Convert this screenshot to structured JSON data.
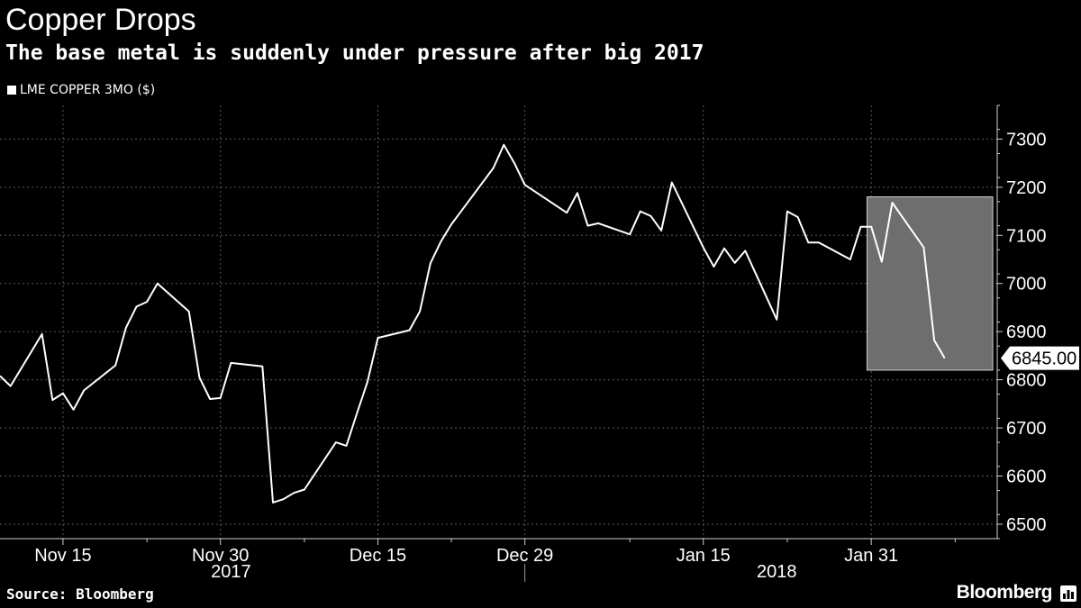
{
  "title": "Copper Drops",
  "subtitle": "The base metal is suddenly under pressure after big 2017",
  "legend": {
    "label": "LME COPPER 3MO ($)",
    "color": "#ffffff"
  },
  "source": "Source: Bloomberg",
  "brand": "Bloomberg",
  "brand_icon": "bloomberg-terminal-icon",
  "last_value_label": "6845.00",
  "highlight": {
    "start_date": "2018-02-02",
    "end_date": "2018-02-09",
    "low": 6820,
    "high": 7180,
    "color": "#6e6e6e"
  },
  "chart_data": {
    "type": "line",
    "x_unit": "date",
    "xlim": [
      "2017-11-09",
      "2018-02-12"
    ],
    "ylim": [
      6470,
      7370
    ],
    "yticks": [
      6500,
      6600,
      6700,
      6800,
      6900,
      7000,
      7100,
      7200,
      7300
    ],
    "xticks": [
      {
        "date": "2017-11-15",
        "label": "Nov 15"
      },
      {
        "date": "2017-11-30",
        "label": "Nov 30"
      },
      {
        "date": "2017-12-15",
        "label": "Dec 15"
      },
      {
        "date": "2017-12-29",
        "label": "Dec 29"
      },
      {
        "date": "2018-01-15",
        "label": "Jan 15"
      },
      {
        "date": "2018-01-31",
        "label": "Jan 31"
      }
    ],
    "years": [
      {
        "date": "2017-12-01",
        "label": "2017"
      },
      {
        "date": "2018-01-22",
        "label": "2018"
      }
    ],
    "year_divider": "2017-12-29",
    "grid": true,
    "legend_position": "top-left",
    "series": [
      {
        "name": "LME COPPER 3MO ($)",
        "color": "#ffffff",
        "points": [
          [
            "2017-11-09",
            6808
          ],
          [
            "2017-11-10",
            6787
          ],
          [
            "2017-11-13",
            6895
          ],
          [
            "2017-11-14",
            6758
          ],
          [
            "2017-11-15",
            6772
          ],
          [
            "2017-11-16",
            6738
          ],
          [
            "2017-11-17",
            6778
          ],
          [
            "2017-11-20",
            6830
          ],
          [
            "2017-11-21",
            6908
          ],
          [
            "2017-11-22",
            6952
          ],
          [
            "2017-11-23",
            6962
          ],
          [
            "2017-11-24",
            7000
          ],
          [
            "2017-11-27",
            6942
          ],
          [
            "2017-11-28",
            6805
          ],
          [
            "2017-11-29",
            6760
          ],
          [
            "2017-11-30",
            6762
          ],
          [
            "2017-12-01",
            6835
          ],
          [
            "2017-12-04",
            6828
          ],
          [
            "2017-12-05",
            6545
          ],
          [
            "2017-12-06",
            6552
          ],
          [
            "2017-12-07",
            6565
          ],
          [
            "2017-12-08",
            6572
          ],
          [
            "2017-12-11",
            6670
          ],
          [
            "2017-12-12",
            6663
          ],
          [
            "2017-12-13",
            6730
          ],
          [
            "2017-12-14",
            6795
          ],
          [
            "2017-12-15",
            6887
          ],
          [
            "2017-12-18",
            6903
          ],
          [
            "2017-12-19",
            6942
          ],
          [
            "2017-12-20",
            7042
          ],
          [
            "2017-12-21",
            7087
          ],
          [
            "2017-12-22",
            7123
          ],
          [
            "2017-12-26",
            7240
          ],
          [
            "2017-12-27",
            7288
          ],
          [
            "2017-12-28",
            7250
          ],
          [
            "2017-12-29",
            7205
          ],
          [
            "2018-01-02",
            7147
          ],
          [
            "2018-01-03",
            7188
          ],
          [
            "2018-01-04",
            7120
          ],
          [
            "2018-01-05",
            7125
          ],
          [
            "2018-01-08",
            7102
          ],
          [
            "2018-01-09",
            7150
          ],
          [
            "2018-01-10",
            7140
          ],
          [
            "2018-01-11",
            7110
          ],
          [
            "2018-01-12",
            7210
          ],
          [
            "2018-01-15",
            7075
          ],
          [
            "2018-01-16",
            7035
          ],
          [
            "2018-01-17",
            7073
          ],
          [
            "2018-01-18",
            7043
          ],
          [
            "2018-01-19",
            7068
          ],
          [
            "2018-01-22",
            6925
          ],
          [
            "2018-01-23",
            7150
          ],
          [
            "2018-01-24",
            7138
          ],
          [
            "2018-01-25",
            7085
          ],
          [
            "2018-01-26",
            7085
          ],
          [
            "2018-01-29",
            7050
          ],
          [
            "2018-01-30",
            7118
          ],
          [
            "2018-01-31",
            7118
          ],
          [
            "2018-02-01",
            7045
          ],
          [
            "2018-02-02",
            7168
          ],
          [
            "2018-02-05",
            7075
          ],
          [
            "2018-02-06",
            6882
          ],
          [
            "2018-02-07",
            6845
          ]
        ]
      }
    ]
  }
}
